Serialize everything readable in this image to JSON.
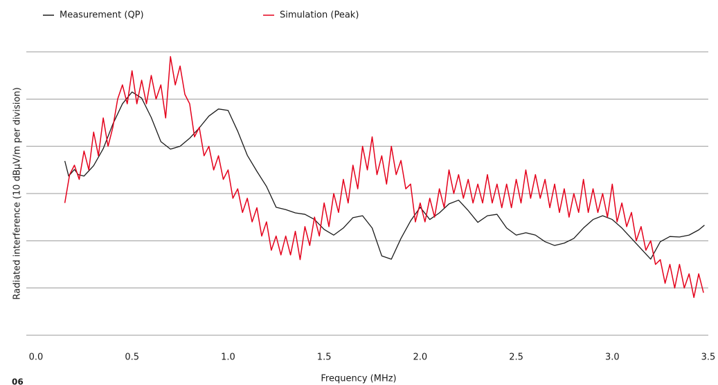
{
  "chart_data": {
    "type": "line",
    "xlabel": "Frequency (MHz)",
    "ylabel": "Radiated interference (10 dBµV/m per division)",
    "footer_text": "06",
    "xlim": [
      0,
      3.5
    ],
    "xticks": [
      {
        "value": 0,
        "label": "0.0"
      },
      0.5,
      {
        "value": 1,
        "label": "1.0"
      },
      1.5,
      {
        "value": 2,
        "label": "2.0"
      },
      2.5,
      {
        "value": 3,
        "label": "3.0"
      },
      3.5
    ],
    "ylim": [
      0,
      6
    ],
    "yticks": [
      0,
      1,
      2,
      3,
      4,
      5,
      6
    ],
    "grid": true,
    "legend": "top-left",
    "series": [
      {
        "name": "Measurement (QP)",
        "color": "#1a1a1a",
        "x": [
          0.15,
          0.17,
          0.2,
          0.22,
          0.25,
          0.3,
          0.35,
          0.4,
          0.45,
          0.5,
          0.55,
          0.6,
          0.65,
          0.7,
          0.75,
          0.8,
          0.85,
          0.9,
          0.95,
          1.0,
          1.05,
          1.1,
          1.15,
          1.2,
          1.25,
          1.3,
          1.35,
          1.4,
          1.45,
          1.5,
          1.55,
          1.6,
          1.65,
          1.7,
          1.75,
          1.8,
          1.85,
          1.9,
          1.95,
          2.0,
          2.05,
          2.1,
          2.15,
          2.2,
          2.25,
          2.3,
          2.35,
          2.4,
          2.45,
          2.5,
          2.55,
          2.6,
          2.65,
          2.7,
          2.75,
          2.8,
          2.85,
          2.9,
          2.95,
          3.0,
          3.05,
          3.1,
          3.15,
          3.2,
          3.25,
          3.3,
          3.35,
          3.4,
          3.45,
          3.48
        ],
        "values": [
          3.69,
          3.37,
          3.51,
          3.4,
          3.37,
          3.59,
          3.95,
          4.47,
          4.9,
          5.15,
          5.02,
          4.61,
          4.1,
          3.94,
          4.0,
          4.17,
          4.39,
          4.64,
          4.79,
          4.76,
          4.32,
          3.81,
          3.47,
          3.15,
          2.71,
          2.66,
          2.59,
          2.56,
          2.45,
          2.24,
          2.12,
          2.27,
          2.49,
          2.53,
          2.27,
          1.68,
          1.61,
          2.05,
          2.42,
          2.71,
          2.45,
          2.59,
          2.78,
          2.86,
          2.64,
          2.39,
          2.53,
          2.56,
          2.27,
          2.12,
          2.17,
          2.12,
          1.98,
          1.9,
          1.95,
          2.05,
          2.27,
          2.45,
          2.53,
          2.45,
          2.27,
          2.05,
          1.83,
          1.61,
          1.98,
          2.09,
          2.08,
          2.12,
          2.23,
          2.33
        ]
      },
      {
        "name": "Simulation (Peak)",
        "color": "#e4001b",
        "x": [
          0.15,
          0.175,
          0.2,
          0.225,
          0.25,
          0.275,
          0.3,
          0.325,
          0.35,
          0.375,
          0.4,
          0.425,
          0.45,
          0.475,
          0.5,
          0.525,
          0.55,
          0.575,
          0.6,
          0.625,
          0.65,
          0.675,
          0.7,
          0.725,
          0.75,
          0.775,
          0.8,
          0.825,
          0.85,
          0.875,
          0.9,
          0.925,
          0.95,
          0.975,
          1.0,
          1.025,
          1.05,
          1.075,
          1.1,
          1.125,
          1.15,
          1.175,
          1.2,
          1.225,
          1.25,
          1.275,
          1.3,
          1.325,
          1.35,
          1.375,
          1.4,
          1.425,
          1.45,
          1.475,
          1.5,
          1.525,
          1.55,
          1.575,
          1.6,
          1.625,
          1.65,
          1.675,
          1.7,
          1.725,
          1.75,
          1.775,
          1.8,
          1.825,
          1.85,
          1.875,
          1.9,
          1.925,
          1.95,
          1.975,
          2.0,
          2.025,
          2.05,
          2.075,
          2.1,
          2.125,
          2.15,
          2.175,
          2.2,
          2.225,
          2.25,
          2.275,
          2.3,
          2.325,
          2.35,
          2.375,
          2.4,
          2.425,
          2.45,
          2.475,
          2.5,
          2.525,
          2.55,
          2.575,
          2.6,
          2.625,
          2.65,
          2.675,
          2.7,
          2.725,
          2.75,
          2.775,
          2.8,
          2.825,
          2.85,
          2.875,
          2.9,
          2.925,
          2.95,
          2.975,
          3.0,
          3.025,
          3.05,
          3.075,
          3.1,
          3.125,
          3.15,
          3.175,
          3.2,
          3.225,
          3.25,
          3.275,
          3.3,
          3.325,
          3.35,
          3.375,
          3.4,
          3.425,
          3.45,
          3.475
        ],
        "values": [
          2.8,
          3.4,
          3.6,
          3.3,
          3.9,
          3.5,
          4.3,
          3.8,
          4.6,
          4.0,
          4.4,
          5.0,
          5.3,
          4.9,
          5.6,
          4.9,
          5.4,
          4.9,
          5.5,
          5.0,
          5.3,
          4.6,
          5.9,
          5.3,
          5.7,
          5.1,
          4.9,
          4.2,
          4.4,
          3.8,
          4.0,
          3.5,
          3.8,
          3.3,
          3.5,
          2.9,
          3.1,
          2.6,
          2.9,
          2.4,
          2.7,
          2.1,
          2.4,
          1.8,
          2.1,
          1.7,
          2.1,
          1.7,
          2.2,
          1.6,
          2.3,
          1.9,
          2.5,
          2.1,
          2.8,
          2.3,
          3.0,
          2.6,
          3.3,
          2.8,
          3.6,
          3.1,
          4.0,
          3.5,
          4.2,
          3.4,
          3.8,
          3.2,
          4.0,
          3.4,
          3.7,
          3.1,
          3.2,
          2.4,
          2.8,
          2.4,
          2.9,
          2.5,
          3.1,
          2.7,
          3.5,
          3.0,
          3.4,
          2.9,
          3.3,
          2.8,
          3.2,
          2.8,
          3.4,
          2.8,
          3.2,
          2.7,
          3.2,
          2.7,
          3.3,
          2.8,
          3.5,
          2.9,
          3.4,
          2.9,
          3.3,
          2.7,
          3.2,
          2.6,
          3.1,
          2.5,
          3.0,
          2.6,
          3.3,
          2.6,
          3.1,
          2.6,
          3.0,
          2.5,
          3.2,
          2.4,
          2.8,
          2.3,
          2.6,
          2.0,
          2.3,
          1.8,
          2.0,
          1.5,
          1.6,
          1.1,
          1.5,
          1.0,
          1.5,
          1.0,
          1.3,
          0.8,
          1.3,
          0.9
        ]
      }
    ]
  }
}
